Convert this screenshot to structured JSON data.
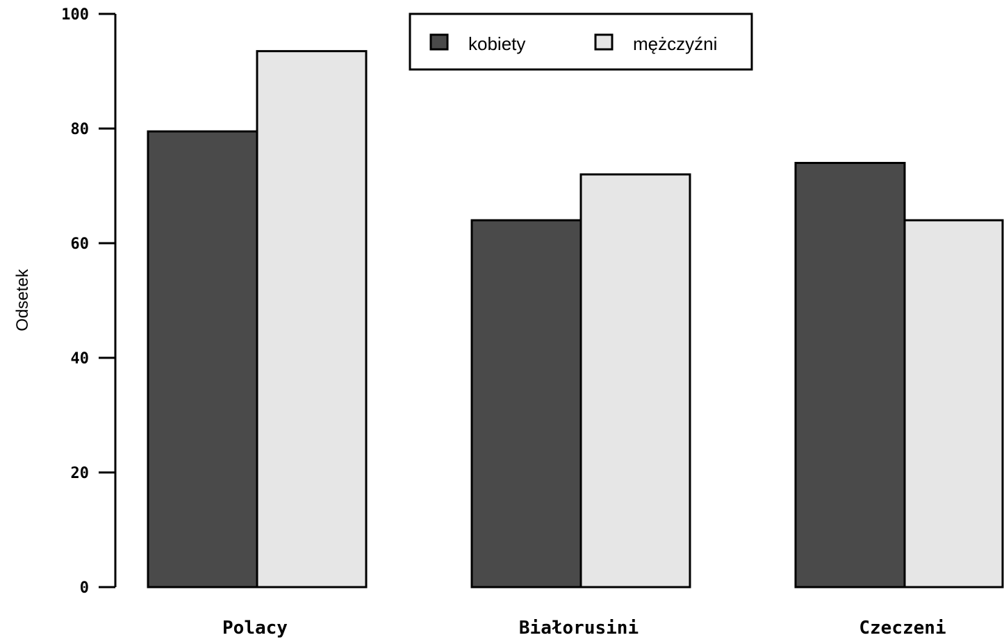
{
  "chart_data": {
    "type": "bar",
    "title": "",
    "xlabel": "",
    "ylabel": "Odsetek",
    "ylim": [
      0,
      100
    ],
    "yticks": [
      0,
      20,
      40,
      60,
      80,
      100
    ],
    "categories": [
      "Polacy",
      "Białorusini",
      "Czeczeni"
    ],
    "series": [
      {
        "name": "kobiety",
        "color": "#4a4a4a",
        "values": [
          79.5,
          64,
          74
        ]
      },
      {
        "name": "mężczyźni",
        "color": "#e6e6e6",
        "values": [
          93.5,
          72,
          64
        ]
      }
    ],
    "legend_position": "top-center",
    "grid": false
  }
}
